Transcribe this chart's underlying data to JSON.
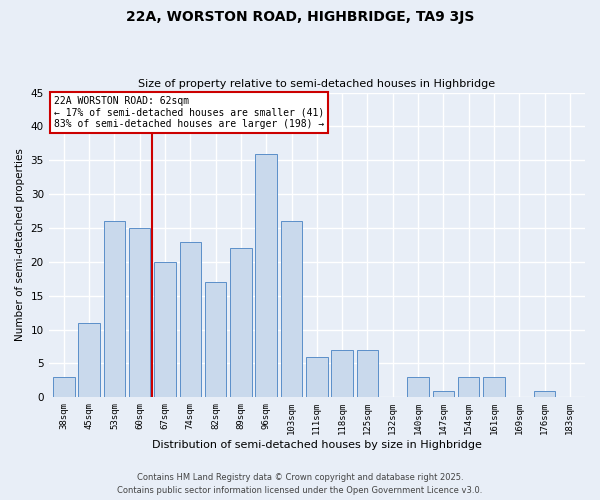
{
  "title": "22A, WORSTON ROAD, HIGHBRIDGE, TA9 3JS",
  "subtitle": "Size of property relative to semi-detached houses in Highbridge",
  "xlabel": "Distribution of semi-detached houses by size in Highbridge",
  "ylabel": "Number of semi-detached properties",
  "categories": [
    "38sqm",
    "45sqm",
    "53sqm",
    "60sqm",
    "67sqm",
    "74sqm",
    "82sqm",
    "89sqm",
    "96sqm",
    "103sqm",
    "111sqm",
    "118sqm",
    "125sqm",
    "132sqm",
    "140sqm",
    "147sqm",
    "154sqm",
    "161sqm",
    "169sqm",
    "176sqm",
    "183sqm"
  ],
  "values": [
    3,
    11,
    26,
    25,
    20,
    23,
    17,
    22,
    36,
    26,
    6,
    7,
    7,
    0,
    3,
    1,
    3,
    3,
    0,
    1,
    0
  ],
  "bar_color": "#c9d9ec",
  "bar_edge_color": "#5b8fc9",
  "background_color": "#e8eef7",
  "grid_color": "#ffffff",
  "red_line_x": 3.5,
  "annotation_title": "22A WORSTON ROAD: 62sqm",
  "annotation_line1": "← 17% of semi-detached houses are smaller (41)",
  "annotation_line2": "83% of semi-detached houses are larger (198) →",
  "annotation_box_color": "#ffffff",
  "annotation_box_edge": "#cc0000",
  "ylim": [
    0,
    45
  ],
  "yticks": [
    0,
    5,
    10,
    15,
    20,
    25,
    30,
    35,
    40,
    45
  ],
  "footer1": "Contains HM Land Registry data © Crown copyright and database right 2025.",
  "footer2": "Contains public sector information licensed under the Open Government Licence v3.0."
}
